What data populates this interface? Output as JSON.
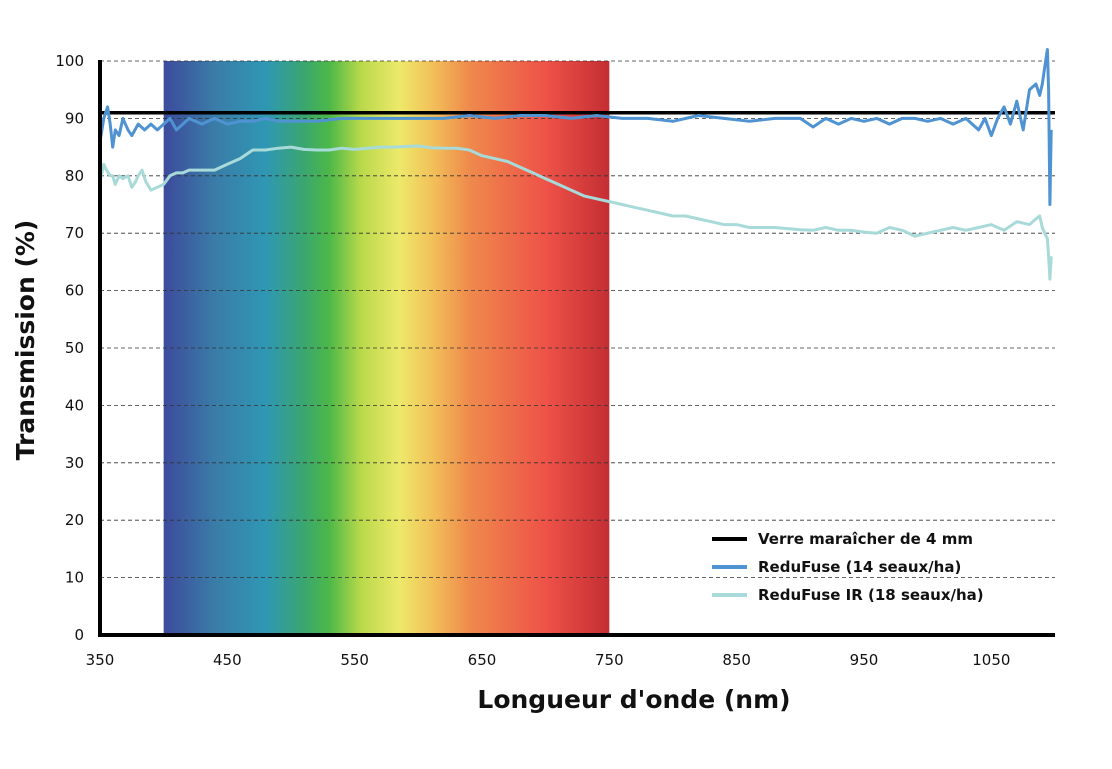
{
  "chart_data": {
    "type": "line",
    "title": "",
    "xlabel": "Longueur d'onde (nm)",
    "ylabel": "Transmission (%)",
    "xlim": [
      350,
      1100
    ],
    "ylim": [
      0,
      100
    ],
    "x_ticks": [
      350,
      450,
      550,
      650,
      750,
      850,
      950,
      1050
    ],
    "y_ticks": [
      0,
      10,
      20,
      30,
      40,
      50,
      60,
      70,
      80,
      90,
      100
    ],
    "grid": "horizontal dashed",
    "legend_position": "bottom-right",
    "visible_spectrum": {
      "range": [
        400,
        750
      ],
      "stops": [
        {
          "nm": 400,
          "color": "#3d4a9c"
        },
        {
          "nm": 440,
          "color": "#3a7ca8"
        },
        {
          "nm": 480,
          "color": "#2f97b4"
        },
        {
          "nm": 510,
          "color": "#3aa66f"
        },
        {
          "nm": 530,
          "color": "#4cb848"
        },
        {
          "nm": 555,
          "color": "#b9d94a"
        },
        {
          "nm": 585,
          "color": "#ede96a"
        },
        {
          "nm": 610,
          "color": "#f2c25a"
        },
        {
          "nm": 640,
          "color": "#ef8a4c"
        },
        {
          "nm": 700,
          "color": "#ee5248"
        },
        {
          "nm": 750,
          "color": "#c42e33"
        }
      ]
    },
    "series": [
      {
        "name": "Verre maraîcher de 4 mm",
        "color": "#000000",
        "x": [
          350,
          1100
        ],
        "y": [
          91,
          91
        ]
      },
      {
        "name": "ReduFuse (14 seaux/ha)",
        "color": "#4f93d3",
        "x": [
          350,
          353,
          356,
          358,
          360,
          362,
          365,
          368,
          372,
          375,
          380,
          385,
          390,
          395,
          400,
          405,
          410,
          415,
          420,
          430,
          440,
          450,
          460,
          470,
          480,
          490,
          500,
          520,
          540,
          560,
          580,
          600,
          620,
          640,
          660,
          680,
          700,
          720,
          740,
          760,
          780,
          800,
          820,
          840,
          860,
          880,
          900,
          910,
          920,
          930,
          940,
          950,
          960,
          970,
          980,
          990,
          1000,
          1010,
          1020,
          1030,
          1040,
          1045,
          1050,
          1055,
          1060,
          1065,
          1070,
          1075,
          1080,
          1085,
          1088,
          1090,
          1092,
          1094,
          1095,
          1096,
          1097
        ],
        "y": [
          86,
          90,
          92,
          89,
          85,
          88,
          87,
          90,
          88,
          87,
          89,
          88,
          89,
          88,
          89,
          90,
          88,
          89,
          90,
          89,
          90,
          89,
          89.5,
          89.5,
          90,
          89.5,
          89.5,
          89.5,
          90,
          90,
          90,
          90,
          90,
          90.5,
          90,
          90.5,
          90.5,
          90,
          90.5,
          90,
          90,
          89.5,
          90.5,
          90,
          89.5,
          90,
          90,
          88.5,
          90,
          89,
          90,
          89.5,
          90,
          89,
          90,
          90,
          89.5,
          90,
          89,
          90,
          88,
          90,
          87,
          90,
          92,
          89,
          93,
          88,
          95,
          96,
          94,
          96,
          99,
          102,
          95,
          75,
          88
        ]
      },
      {
        "name": "ReduFuse IR (18 seaux/ha)",
        "color": "#a8dad9",
        "x": [
          350,
          353,
          355,
          358,
          360,
          362,
          365,
          368,
          372,
          375,
          378,
          380,
          383,
          386,
          390,
          395,
          400,
          405,
          410,
          415,
          420,
          430,
          440,
          450,
          460,
          470,
          480,
          490,
          500,
          510,
          520,
          530,
          540,
          550,
          560,
          570,
          580,
          590,
          600,
          610,
          620,
          630,
          640,
          650,
          660,
          670,
          680,
          690,
          700,
          710,
          720,
          730,
          740,
          750,
          760,
          770,
          780,
          790,
          800,
          810,
          820,
          830,
          840,
          850,
          860,
          870,
          880,
          890,
          900,
          910,
          920,
          930,
          940,
          950,
          960,
          970,
          980,
          990,
          1000,
          1010,
          1020,
          1030,
          1040,
          1050,
          1060,
          1070,
          1080,
          1085,
          1088,
          1090,
          1092,
          1094,
          1095,
          1096,
          1097
        ],
        "y": [
          79,
          82,
          81,
          80,
          80,
          78.5,
          80,
          79.5,
          80,
          78,
          79,
          80,
          81,
          79,
          77.5,
          78,
          78.5,
          80,
          80.5,
          80.5,
          81,
          81,
          81,
          82,
          83,
          84.5,
          84.5,
          84.8,
          85,
          84.6,
          84.5,
          84.5,
          84.8,
          84.6,
          84.8,
          85,
          85,
          85.1,
          85.2,
          84.9,
          84.8,
          84.8,
          84.5,
          83.5,
          83,
          82.5,
          81.5,
          80.5,
          79.5,
          78.5,
          77.5,
          76.5,
          76,
          75.5,
          75,
          74.5,
          74,
          73.5,
          73,
          73,
          72.5,
          72,
          71.5,
          71.5,
          71,
          71,
          71,
          70.8,
          70.6,
          70.5,
          71,
          70.5,
          70.5,
          70.2,
          70,
          71,
          70.5,
          69.5,
          70,
          70.5,
          71,
          70.5,
          71,
          71.5,
          70.5,
          72,
          71.5,
          72.5,
          73,
          71,
          70,
          69,
          66,
          62,
          66
        ]
      }
    ]
  }
}
